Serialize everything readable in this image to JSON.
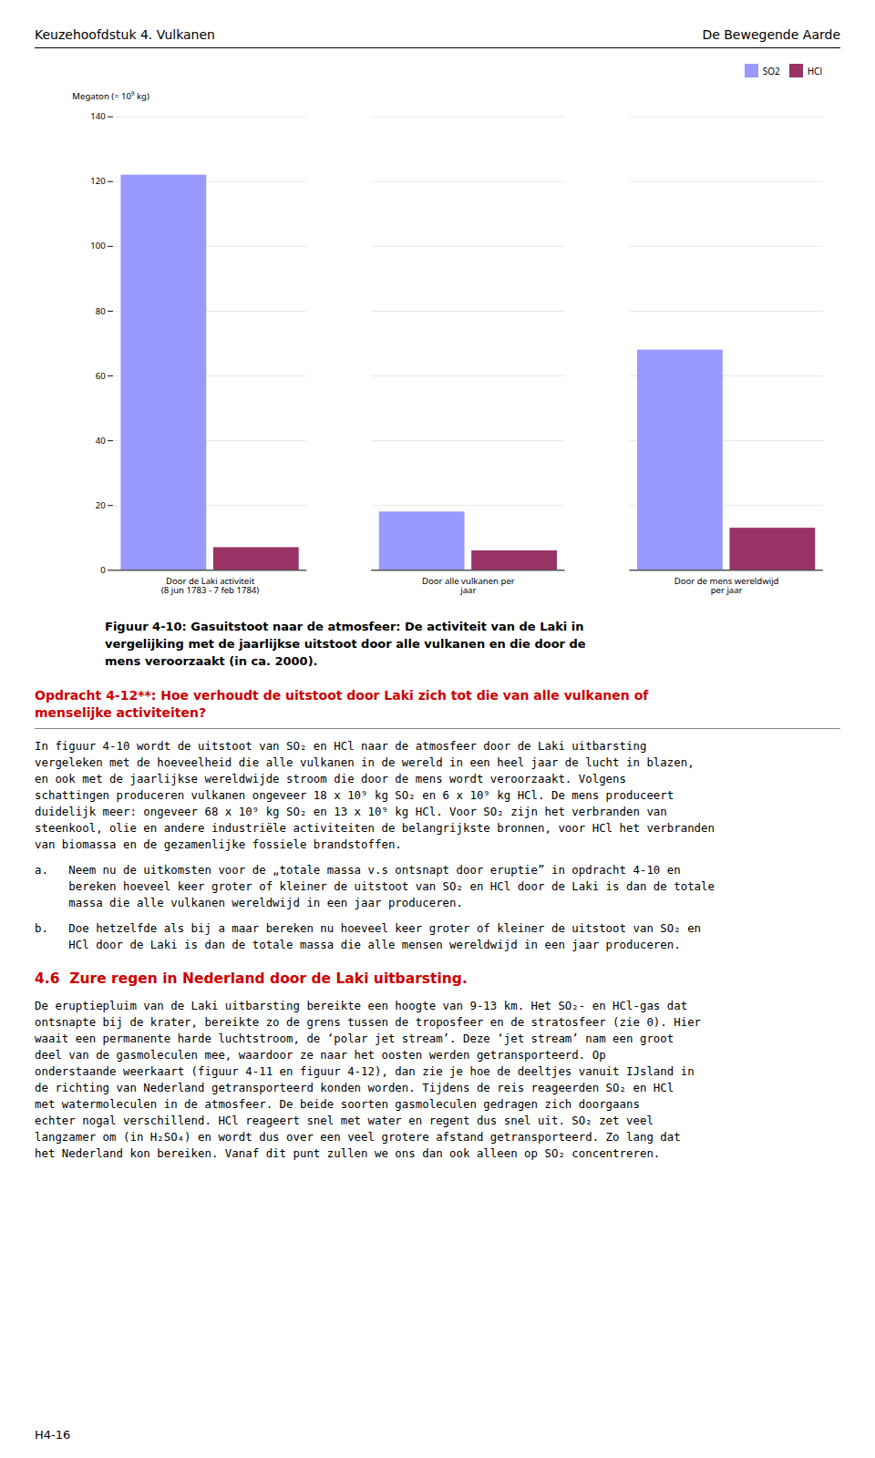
{
  "chart_data": {
    "type": "bar",
    "categories": [
      "Door de Laki activiteit\n(8 jun 1783 - 7 feb 1784)",
      "Door alle vulkanen per\njaar",
      "Door de mens wereldwijd\nper jaar"
    ],
    "series": [
      {
        "name": "SO2",
        "color": "#9999FF",
        "values": [
          122,
          18,
          68
        ]
      },
      {
        "name": "HCl",
        "color": "#993366",
        "values": [
          7,
          6,
          13
        ]
      }
    ],
    "ylabel": "Megaton (= 10⁹ kg)",
    "ylim": [
      0,
      140
    ],
    "yticks": [
      0,
      20,
      40,
      60,
      80,
      100,
      120,
      140
    ],
    "grid": true,
    "legend": "upper right",
    "caption": "Figuur 4-10: Gasuitstoot naar de atmosfeer: De activiteit van de Laki in\nvergelijking met de jaarlijkse uitstoot door alle vulkanen en die door de\nmens veroorzaakt (in ca. 2000)."
  },
  "page": {
    "header_left": "Keuzehoofdstuk 4. Vulkanen",
    "header_right": "De Bewegende Aarde",
    "opdracht_text": "Opdracht 4-12**: Hoe verhoudt de uitstoot door Laki zich tot die van alle vulkanen of\nmenselijke activiteiten?",
    "body_para1": "In figuur 4-10 wordt de uitstoot van SO₂ en HCl naar de atmosfeer door de Laki uitbarsting\nvergeleken met de hoeveelheid die alle vulkanen in de wereld in een heel jaar de lucht in blazen,\nen ook met de jaarlijkse wereldwijde stroom die door de mens wordt veroorzaakt. Volgens\nschattingen produceren vulkanen ongeveer 18 x 10⁹ kg SO₂ en 6 x 10⁹ kg HCl. De mens produceert\nduidelijk meer: ongeveer 68 x 10⁹ kg SO₂ en 13 x 10⁹ kg HCl. Voor SO₂ zijn het verbranden van\nsteenkool, olie en andere industriële activiteiten de belangrijkste bronnen, voor HCl het verbranden\nvan biomassa en de gezamenlijke fossiele brandstoffen.",
    "item_a": "a.   Neem nu de uitkomsten voor de „totale massa v.s ontsnapt door eruptie” in opdracht 4-10 en\n     bereken hoeveel keer groter of kleiner de uitstoot van SO₂ en HCl door de Laki is dan de totale\n     massa die alle vulkanen wereldwijd in een jaar produceren.",
    "item_b": "b.   Doe hetzelfde als bij a maar bereken nu hoeveel keer groter of kleiner de uitstoot van SO₂ en\n     HCl door de Laki is dan de totale massa die alle mensen wereldwijd in een jaar produceren.",
    "section_header": "4.6  Zure regen in Nederland door de Laki uitbarsting.",
    "section_body": "De eruptiepluim van de Laki uitbarsting bereikte een hoogte van 9-13 km. Het SO₂- en HCl-gas dat\nontsnapte bij de krater, bereikte zo de grens tussen de troposfeer en de stratosfeer (zie 0). Hier\nwaait een permanente harde luchtstroom, de ‘polar jet stream’. Deze ‘jet stream’ nam een groot\ndeel van de gasmoleculen mee, waardoor ze naar het oosten werden getransporteerd. Op\nonderstaande weerkaart (figuur 4-11 en figuur 4-12), dan zie je hoe de deeltjes vanuit IJsland in\nde richting van Nederland getransporteerd konden worden. Tijdens de reis reageerden SO₂ en HCl\nmet watermoleculen in de atmosfeer. De beide soorten gasmoleculen gedragen zich doorgaans\nechter nogal verschillend. HCl reageert snel met water en regent dus snel uit. SO₂ zet veel\nlangzamer om (in H₂SO₄) en wordt dus over een veel grotere afstand getransporteerd. Zo lang dat\nhet Nederland kon bereiken. Vanaf dit punt zullen we ons dan ook alleen op SO₂ concentreren.",
    "footer_left": "H4-16"
  }
}
